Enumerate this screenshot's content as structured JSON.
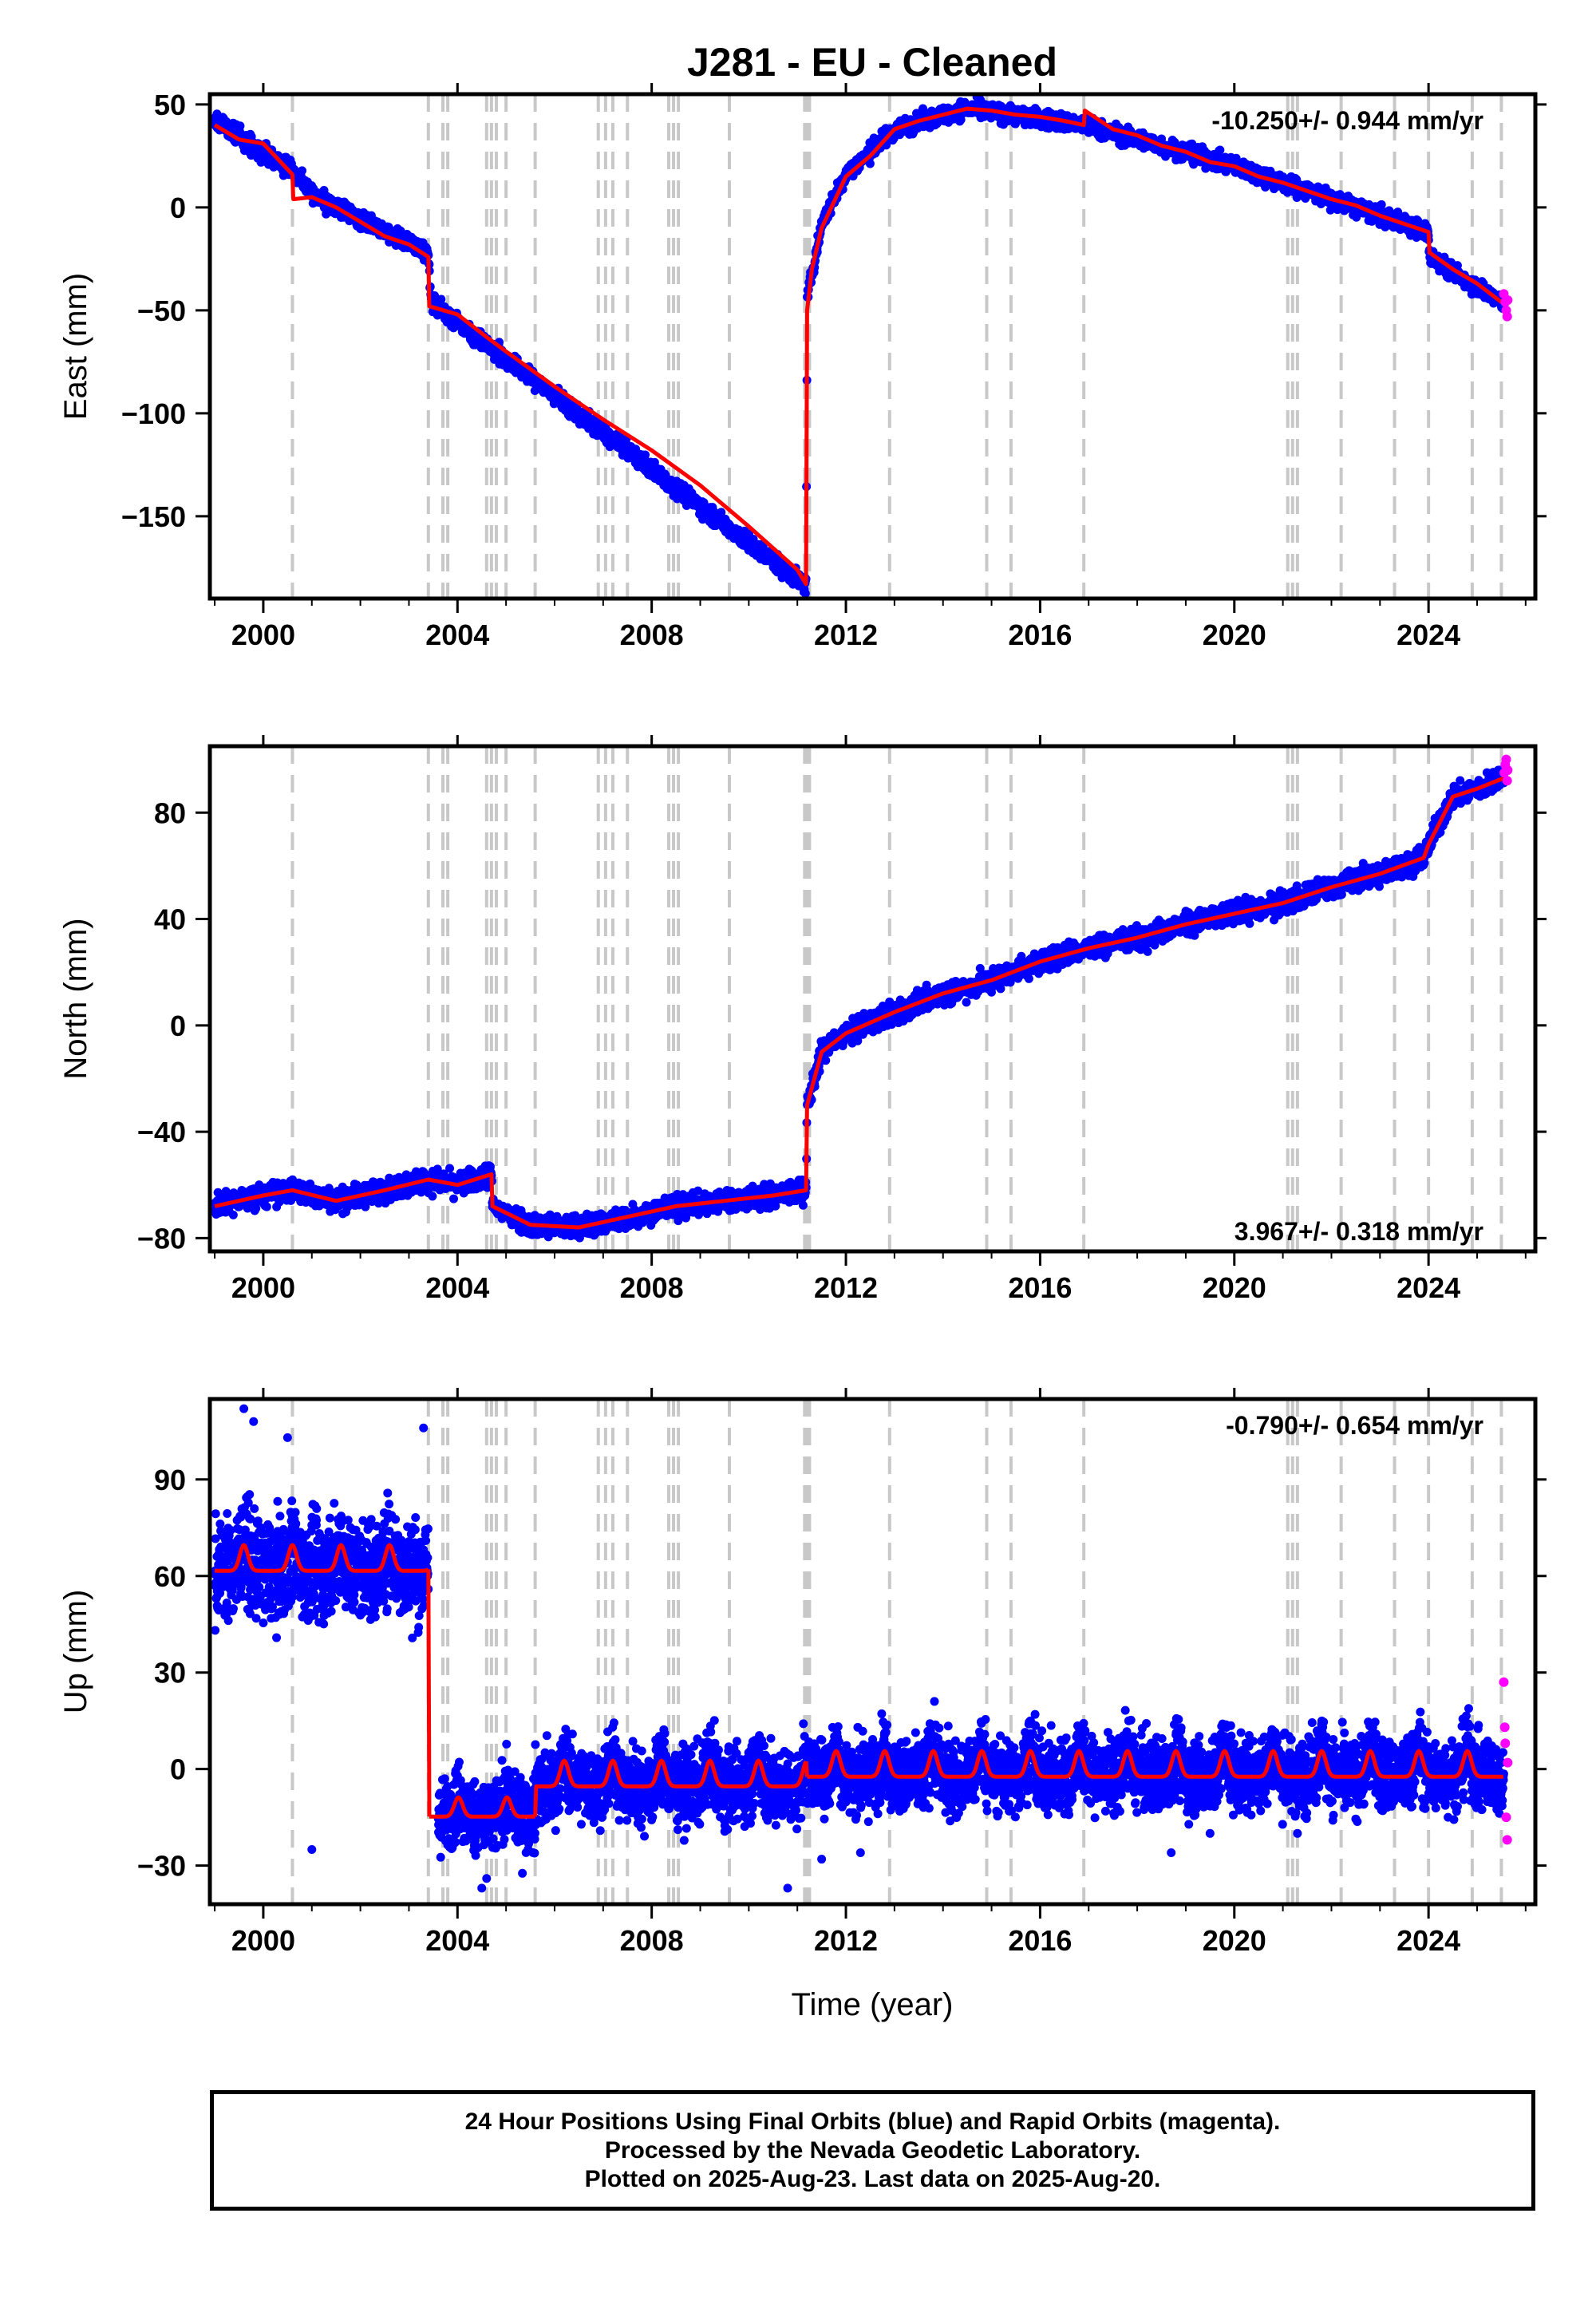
{
  "title": "J281  - EU - Cleaned",
  "colors": {
    "final_orbits": "#0000ff",
    "rapid_orbits": "#ff00ff",
    "model": "#ff0000",
    "event_lines": "#c8c8c8"
  },
  "xaxis": {
    "label": "Time (year)",
    "range": [
      1998.9,
      2026.2
    ],
    "ticks": [
      2000,
      2004,
      2008,
      2012,
      2016,
      2020,
      2024
    ]
  },
  "event_years": [
    2000.6,
    2003.4,
    2003.7,
    2003.8,
    2004.6,
    2004.7,
    2004.8,
    2005.0,
    2005.6,
    2006.9,
    2007.05,
    2007.2,
    2007.5,
    2008.35,
    2008.45,
    2008.55,
    2009.6,
    2011.15,
    2011.2,
    2011.25,
    2012.9,
    2014.9,
    2015.4,
    2016.9,
    2021.1,
    2021.2,
    2021.3,
    2022.2,
    2023.3,
    2024.0,
    2024.9,
    2025.5
  ],
  "chart_data": [
    {
      "type": "scatter",
      "name": "east",
      "ylabel": "East (mm)",
      "ylim": [
        -190,
        55
      ],
      "yticks": [
        50,
        0,
        -50,
        -100,
        -150
      ],
      "rate_label": "-10.250+/- 0.944 mm/yr",
      "rate_position": "top-right",
      "model_line": [
        [
          1999.0,
          40
        ],
        [
          1999.5,
          33
        ],
        [
          2000.0,
          31
        ],
        [
          2000.6,
          16
        ],
        [
          2000.62,
          4
        ],
        [
          2001.0,
          5
        ],
        [
          2001.5,
          0
        ],
        [
          2002.0,
          -7
        ],
        [
          2002.5,
          -14
        ],
        [
          2003.0,
          -18
        ],
        [
          2003.4,
          -24
        ],
        [
          2003.42,
          -48
        ],
        [
          2004.0,
          -52
        ],
        [
          2004.6,
          -63
        ],
        [
          2005.0,
          -70
        ],
        [
          2006.0,
          -87
        ],
        [
          2007.0,
          -103
        ],
        [
          2008.0,
          -118
        ],
        [
          2009.0,
          -135
        ],
        [
          2010.0,
          -155
        ],
        [
          2011.0,
          -176
        ],
        [
          2011.18,
          -183
        ],
        [
          2011.2,
          -50
        ],
        [
          2011.3,
          -30
        ],
        [
          2011.5,
          -10
        ],
        [
          2012.0,
          15
        ],
        [
          2012.5,
          25
        ],
        [
          2013.0,
          38
        ],
        [
          2013.5,
          42
        ],
        [
          2014.0,
          45
        ],
        [
          2014.5,
          48
        ],
        [
          2015.0,
          47
        ],
        [
          2015.5,
          45
        ],
        [
          2016.0,
          44
        ],
        [
          2016.5,
          42
        ],
        [
          2016.9,
          40
        ],
        [
          2016.92,
          47
        ],
        [
          2017.5,
          38
        ],
        [
          2018.0,
          35
        ],
        [
          2018.5,
          30
        ],
        [
          2019.0,
          27
        ],
        [
          2019.5,
          22
        ],
        [
          2020.0,
          20
        ],
        [
          2020.5,
          15
        ],
        [
          2021.0,
          12
        ],
        [
          2021.5,
          8
        ],
        [
          2022.0,
          4
        ],
        [
          2022.5,
          1
        ],
        [
          2023.0,
          -4
        ],
        [
          2023.5,
          -8
        ],
        [
          2024.0,
          -12
        ],
        [
          2024.02,
          -22
        ],
        [
          2024.5,
          -30
        ],
        [
          2025.0,
          -37
        ],
        [
          2025.5,
          -46
        ]
      ],
      "final_orbits_trend": [
        [
          1999.0,
          42
        ],
        [
          2000.6,
          18
        ],
        [
          2001.0,
          6
        ],
        [
          2003.4,
          -22
        ],
        [
          2003.45,
          -46
        ],
        [
          2011.18,
          -184
        ],
        [
          2011.2,
          -45
        ],
        [
          2011.5,
          -8
        ],
        [
          2012.0,
          16
        ],
        [
          2013.0,
          38
        ],
        [
          2014.5,
          48
        ],
        [
          2016.9,
          40
        ],
        [
          2018.5,
          30
        ],
        [
          2020.0,
          20
        ],
        [
          2022.0,
          4
        ],
        [
          2024.0,
          -12
        ],
        [
          2024.02,
          -24
        ],
        [
          2025.5,
          -46
        ]
      ],
      "final_orbits_scatter_mm": 3,
      "rapid_orbits": [
        [
          2025.55,
          -42
        ],
        [
          2025.58,
          -46
        ],
        [
          2025.6,
          -50
        ],
        [
          2025.62,
          -53
        ],
        [
          2025.63,
          -45
        ]
      ]
    },
    {
      "type": "scatter",
      "name": "north",
      "ylabel": "North (mm)",
      "ylim": [
        -85,
        105
      ],
      "yticks": [
        80,
        40,
        0,
        -40,
        -80
      ],
      "rate_label": "3.967+/- 0.318 mm/yr",
      "rate_position": "bottom-right",
      "model_line": [
        [
          1999.0,
          -68
        ],
        [
          2000.0,
          -64
        ],
        [
          2000.6,
          -62
        ],
        [
          2001.5,
          -66
        ],
        [
          2002.5,
          -62
        ],
        [
          2003.4,
          -58
        ],
        [
          2004.0,
          -60
        ],
        [
          2004.7,
          -56
        ],
        [
          2004.72,
          -68
        ],
        [
          2005.5,
          -75
        ],
        [
          2006.5,
          -76
        ],
        [
          2007.5,
          -72
        ],
        [
          2008.5,
          -68
        ],
        [
          2009.5,
          -66
        ],
        [
          2010.5,
          -64
        ],
        [
          2011.18,
          -62
        ],
        [
          2011.2,
          -30
        ],
        [
          2011.5,
          -10
        ],
        [
          2012.0,
          -3
        ],
        [
          2013.0,
          5
        ],
        [
          2014.0,
          12
        ],
        [
          2015.0,
          17
        ],
        [
          2016.0,
          24
        ],
        [
          2017.0,
          29
        ],
        [
          2018.0,
          33
        ],
        [
          2019.0,
          38
        ],
        [
          2020.0,
          42
        ],
        [
          2021.0,
          46
        ],
        [
          2022.0,
          52
        ],
        [
          2023.0,
          57
        ],
        [
          2023.9,
          63
        ],
        [
          2024.0,
          68
        ],
        [
          2024.5,
          86
        ],
        [
          2025.0,
          89
        ],
        [
          2025.55,
          93
        ]
      ],
      "final_orbits_scatter_mm": 3,
      "rapid_orbits": [
        [
          2025.56,
          95
        ],
        [
          2025.58,
          98
        ],
        [
          2025.6,
          100
        ],
        [
          2025.62,
          92
        ],
        [
          2025.63,
          96
        ]
      ]
    },
    {
      "type": "scatter",
      "name": "up",
      "ylabel": "Up (mm)",
      "ylim": [
        -42,
        115
      ],
      "yticks": [
        90,
        60,
        30,
        0,
        -30
      ],
      "rate_label": "-0.790+/- 0.654 mm/yr",
      "rate_position": "top-right",
      "model_line_seasonal": {
        "segments": [
          {
            "from": 1999.0,
            "to": 2003.4,
            "base": 64,
            "amplitude": 4
          },
          {
            "from": 2003.42,
            "to": 2005.6,
            "base": -13,
            "amplitude": 3
          },
          {
            "from": 2005.6,
            "to": 2011.18,
            "base": -3,
            "amplitude": 4
          },
          {
            "from": 2011.2,
            "to": 2025.55,
            "base": 0,
            "amplitude": 4
          }
        ]
      },
      "final_orbits_scatter_mm": 8,
      "final_orbits_outliers": [
        [
          1999.6,
          112
        ],
        [
          1999.8,
          108
        ],
        [
          2000.5,
          103
        ],
        [
          2003.3,
          106
        ],
        [
          2001.0,
          -25
        ],
        [
          2004.5,
          -37
        ],
        [
          2004.6,
          -34
        ],
        [
          2010.8,
          -37
        ],
        [
          2011.5,
          -28
        ],
        [
          2012.3,
          -26
        ],
        [
          2018.7,
          -26
        ],
        [
          2019.5,
          -20
        ],
        [
          2021.3,
          -20
        ]
      ],
      "rapid_orbits": [
        [
          2025.55,
          27
        ],
        [
          2025.57,
          13
        ],
        [
          2025.58,
          8
        ],
        [
          2025.6,
          -15
        ],
        [
          2025.62,
          -22
        ],
        [
          2025.63,
          2
        ]
      ]
    }
  ],
  "footer": {
    "line1": "24 Hour Positions Using Final Orbits (blue) and Rapid Orbits (magenta).",
    "line2": "Processed by the Nevada Geodetic Laboratory.",
    "line3": "Plotted on 2025-Aug-23. Last data on 2025-Aug-20."
  }
}
